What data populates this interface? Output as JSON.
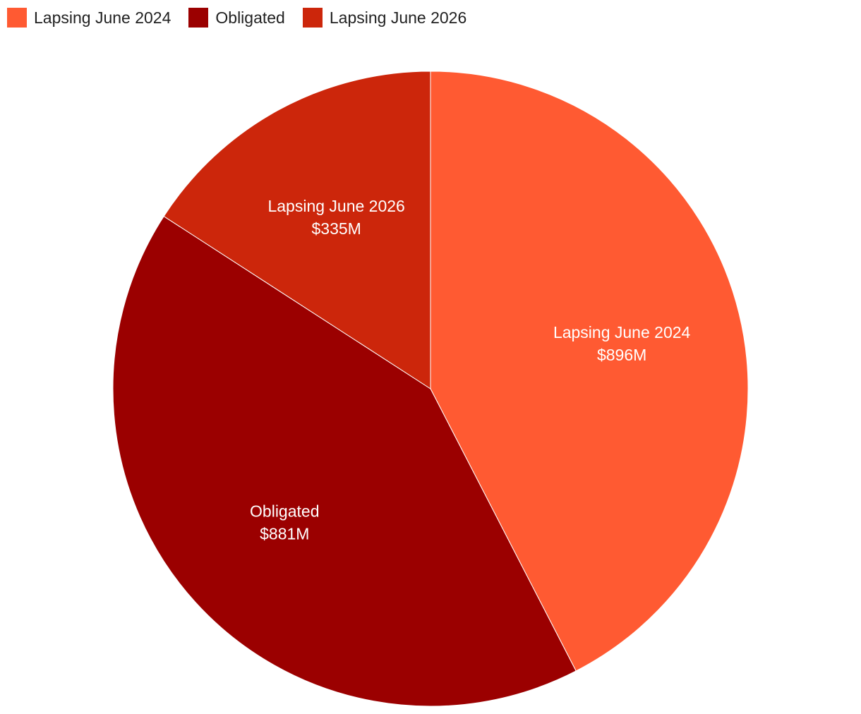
{
  "chart_data": {
    "type": "pie",
    "legend_position": "top-left",
    "slices": [
      {
        "label": "Lapsing June 2024",
        "value": 896,
        "value_label": "$896M",
        "color": "#ff5a32"
      },
      {
        "label": "Obligated",
        "value": 881,
        "value_label": "$881M",
        "color": "#9b0000"
      },
      {
        "label": "Lapsing June 2026",
        "value": 335,
        "value_label": "$335M",
        "color": "#cc260b"
      }
    ]
  }
}
